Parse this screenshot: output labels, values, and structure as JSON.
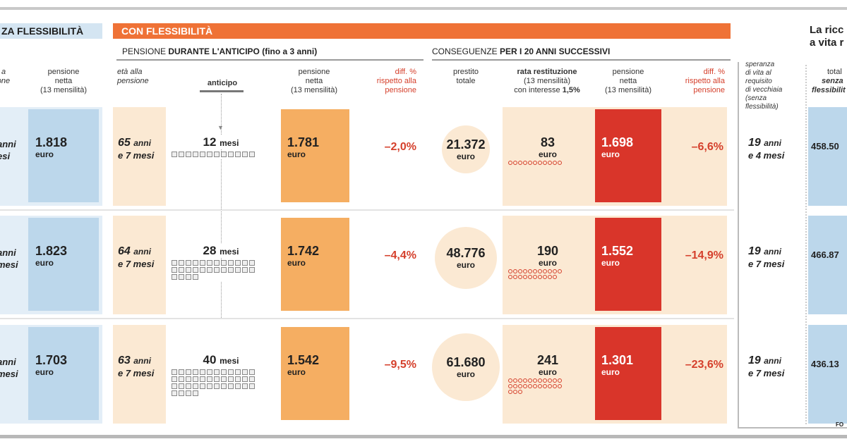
{
  "chart_data": {
    "type": "table",
    "sections": {
      "left": "ZA FLESSIBILITÀ",
      "main": "CON FLESSIBILITÀ",
      "right_title_1": "La ricc",
      "right_title_2": "a vita r"
    },
    "subheaders": {
      "anticipo_pre": "PENSIONE ",
      "anticipo_bold": "DURANTE L'ANTICIPO (fino a 3 anni)",
      "conseg_pre": "CONSEGUENZE ",
      "conseg_bold": "PER I 20 ANNI SUCCESSIVI"
    },
    "columns": {
      "left_age": "a\none",
      "left_pension": "pensione\nnetta\n(13 mensilità)",
      "age": "età alla\npensione",
      "anticipo": "anticipo",
      "pension_during": "pensione\nnetta\n(13 mensilità)",
      "diff_during": "diff. %\nrispetto alla\npensione",
      "loan": "prestito\ntotale",
      "rata_bold": "rata restituzione",
      "rata_sub": "(13 mensilità)\ncon interesse ",
      "rata_rate": "1,5%",
      "pension_after": "pensione\nnetta\n(13 mensilità)",
      "diff_after": "diff. %\nrispetto alla\npensione",
      "life": "speranza\ndi vita al\nrequisito\ndi vecchiaia\n(senza\nflessibilità)",
      "total_1": "total",
      "total_2": "senza",
      "total_3": "flessibilit"
    },
    "rows": [
      {
        "left_age_1": "anni",
        "left_age_2": "esi",
        "left_pension": "1.818",
        "age_num": "65",
        "age_rest": "e 7 mesi",
        "anticipo_num": "12",
        "anticipo_months": 12,
        "pension_during": "1.781",
        "diff_during": "–2,0%",
        "loan": "21.372",
        "rata": "83",
        "pension_after": "1.698",
        "diff_after": "–6,6%",
        "life_num": "19",
        "life_rest": "e 4 mesi",
        "total": "458.50"
      },
      {
        "left_age_1": "anni",
        "left_age_2": "mesi",
        "left_pension": "1.823",
        "age_num": "64",
        "age_rest": "e 7 mesi",
        "anticipo_num": "28",
        "anticipo_months": 28,
        "pension_during": "1.742",
        "diff_during": "–4,4%",
        "loan": "48.776",
        "rata": "190",
        "pension_after": "1.552",
        "diff_after": "–14,9%",
        "life_num": "19",
        "life_rest": "e 7 mesi",
        "total": "466.87"
      },
      {
        "left_age_1": "anni",
        "left_age_2": "mesi",
        "left_pension": "1.703",
        "age_num": "63",
        "age_rest": "e 7 mesi",
        "anticipo_num": "40",
        "anticipo_months": 40,
        "pension_during": "1.542",
        "diff_during": "–9,5%",
        "loan": "61.680",
        "rata": "241",
        "pension_after": "1.301",
        "diff_after": "–23,6%",
        "life_num": "19",
        "life_rest": "e 7 mesi",
        "total": "436.13"
      }
    ],
    "units": {
      "euro": "euro",
      "anni": "anni",
      "mesi": "mesi"
    },
    "source": "FO",
    "colors": {
      "orange": "#ef7236",
      "blue": "#bcd7eb",
      "cream": "#fbe9d3",
      "pension_orange": "#f5ae62",
      "red": "#d9352a",
      "diff_red": "#d5402c"
    }
  }
}
